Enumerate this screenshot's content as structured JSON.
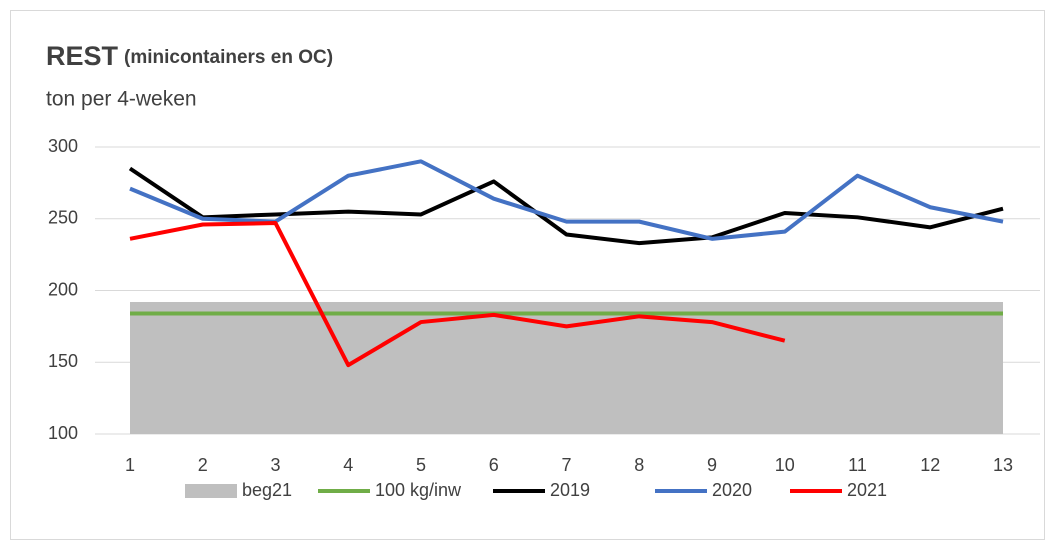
{
  "chart_data": {
    "type": "line",
    "title": "REST",
    "title_note": "(minicontainers en OC)",
    "subtitle": "ton per 4-weken",
    "categories": [
      "1",
      "2",
      "3",
      "4",
      "5",
      "6",
      "7",
      "8",
      "9",
      "10",
      "11",
      "12",
      "13"
    ],
    "ylim": [
      100,
      300
    ],
    "yticks": [
      100,
      150,
      200,
      250,
      300
    ],
    "grid": true,
    "legend": "bottom",
    "series": [
      {
        "name": "beg21",
        "kind": "area",
        "color": "#bfbfbf",
        "values": [
          192,
          192,
          192,
          192,
          192,
          192,
          192,
          192,
          192,
          192,
          192,
          192,
          192
        ]
      },
      {
        "name": "100 kg/inw",
        "color": "#70ad47",
        "values": [
          184,
          184,
          184,
          184,
          184,
          184,
          184,
          184,
          184,
          184,
          184,
          184,
          184
        ]
      },
      {
        "name": "2019",
        "color": "#000000",
        "values": [
          285,
          251,
          253,
          255,
          253,
          276,
          239,
          233,
          237,
          254,
          251,
          244,
          257
        ]
      },
      {
        "name": "2020",
        "color": "#4472c4",
        "values": [
          271,
          250,
          248,
          280,
          290,
          264,
          248,
          248,
          236,
          241,
          280,
          258,
          248
        ]
      },
      {
        "name": "2021",
        "color": "#ff0000",
        "values": [
          236,
          246,
          247,
          148,
          178,
          183,
          175,
          182,
          178,
          165,
          null,
          null,
          null
        ]
      }
    ]
  }
}
